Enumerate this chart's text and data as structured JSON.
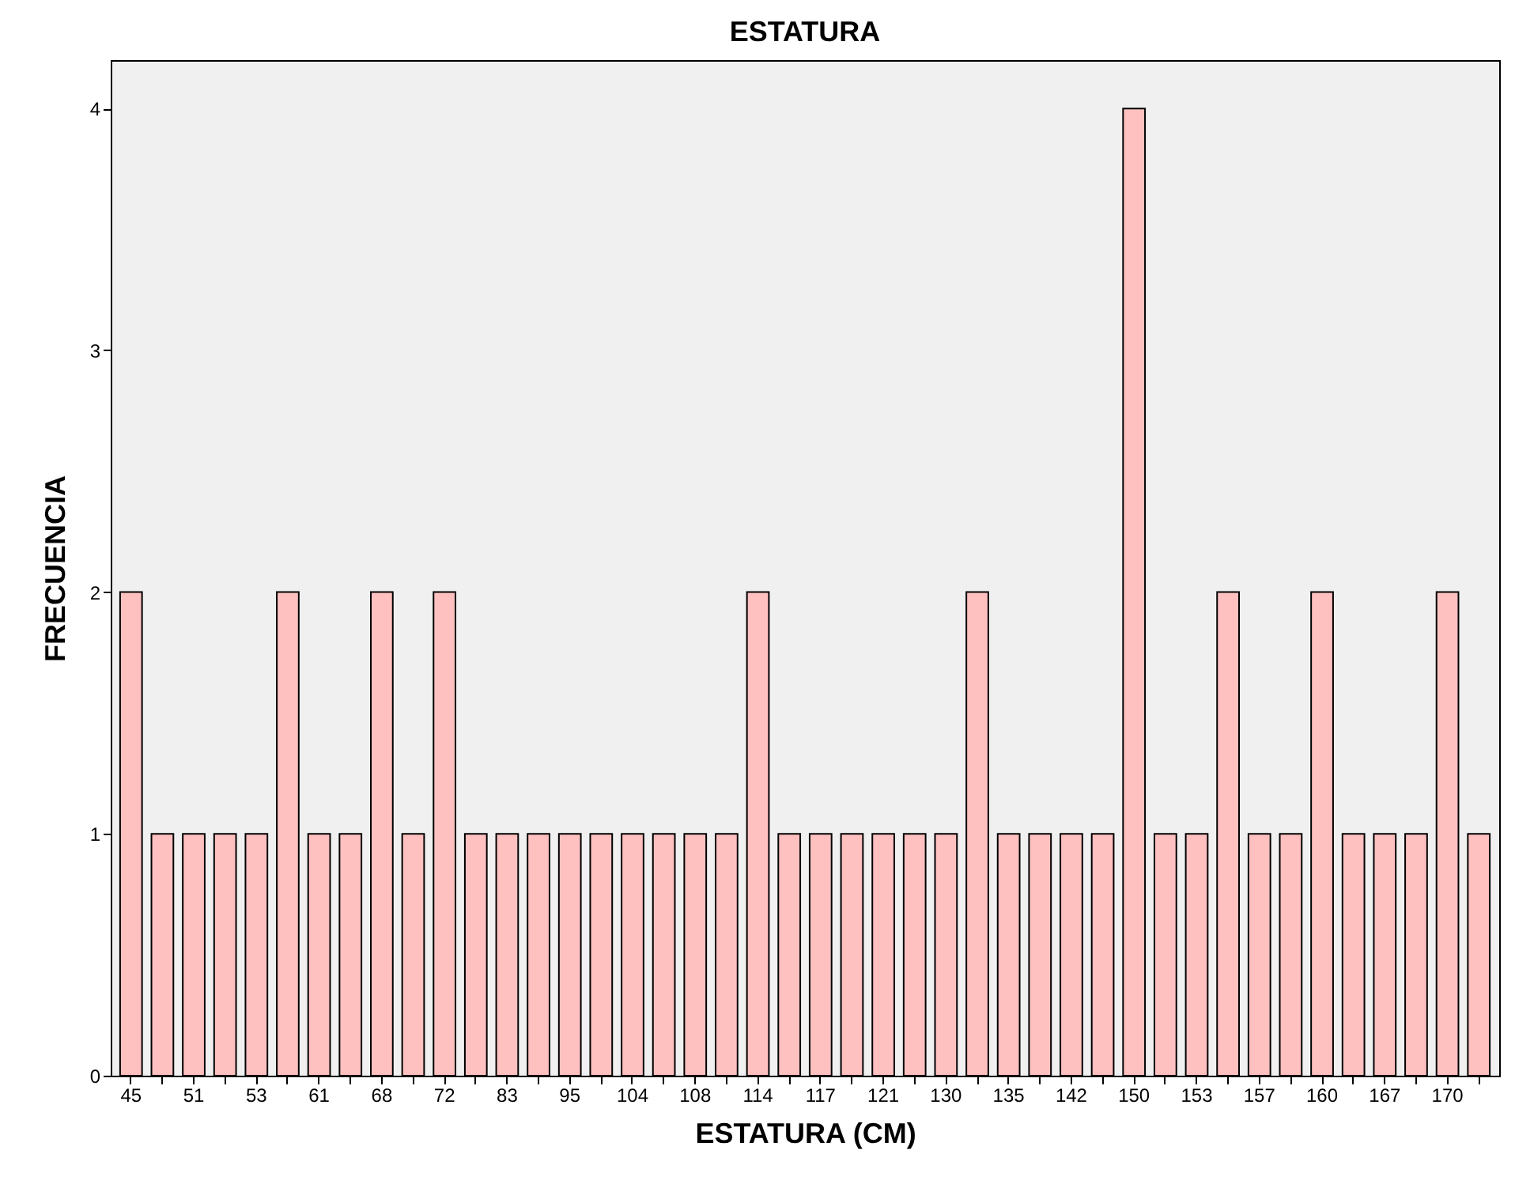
{
  "chart_data": {
    "type": "bar",
    "title": "ESTATURA",
    "xlabel": "ESTATURA (CM)",
    "ylabel": "FRECUENCIA",
    "categories": [
      "45",
      null,
      "51",
      null,
      "53",
      null,
      "61",
      null,
      "68",
      null,
      "72",
      null,
      "83",
      null,
      "95",
      null,
      "104",
      null,
      "108",
      null,
      "114",
      null,
      "117",
      null,
      "121",
      null,
      "130",
      null,
      "135",
      null,
      "142",
      null,
      "150",
      null,
      "153",
      null,
      "157",
      null,
      "160",
      null,
      "167",
      null,
      "170",
      null
    ],
    "values": [
      2,
      1,
      1,
      1,
      1,
      2,
      1,
      1,
      2,
      1,
      2,
      1,
      1,
      1,
      1,
      1,
      1,
      1,
      1,
      1,
      2,
      1,
      1,
      1,
      1,
      1,
      1,
      2,
      1,
      1,
      1,
      1,
      4,
      1,
      1,
      2,
      1,
      1,
      2,
      1,
      1,
      1,
      2,
      1
    ],
    "color": "#ffc0c0",
    "ylim": [
      0,
      4.2
    ],
    "yticks": [
      0,
      1,
      2,
      3,
      4
    ]
  }
}
